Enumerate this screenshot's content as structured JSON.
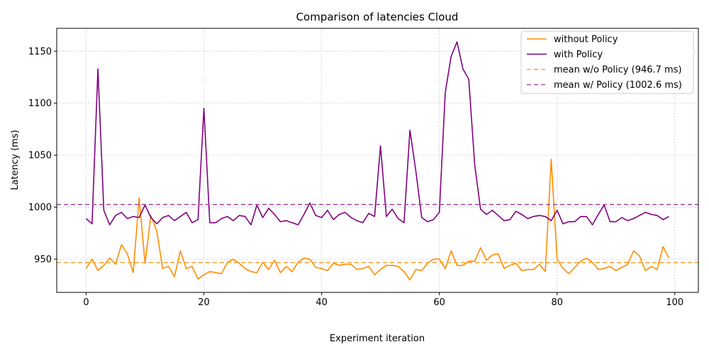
{
  "chart_data": {
    "type": "line",
    "title": "Comparison of latencies Cloud",
    "xlabel": "Experiment iteration",
    "ylabel": "Latency (ms)",
    "xlim": [
      -5,
      104
    ],
    "ylim": [
      918,
      1172
    ],
    "xticks": [
      0,
      20,
      40,
      60,
      80,
      100
    ],
    "yticks": [
      950,
      1000,
      1050,
      1100,
      1150
    ],
    "grid": true,
    "legend_position": "top-right",
    "series": [
      {
        "name": "without Policy",
        "color": "#ff8c00",
        "style": "solid",
        "values": [
          941,
          950,
          939,
          944,
          951,
          945,
          964,
          955,
          937,
          1009,
          946,
          992,
          977,
          941,
          943,
          933,
          958,
          941,
          943,
          931,
          935,
          938,
          937,
          936,
          947,
          950,
          946,
          941,
          938,
          937,
          947,
          940,
          949,
          937,
          943,
          938,
          947,
          951,
          950,
          942,
          941,
          939,
          946,
          944,
          945,
          945,
          940,
          941,
          943,
          935,
          940,
          944,
          944,
          943,
          938,
          930,
          940,
          939,
          946,
          950,
          950,
          941,
          958,
          944,
          944,
          948,
          948,
          961,
          949,
          954,
          955,
          941,
          944,
          946,
          939,
          940,
          940,
          945,
          938,
          1046,
          950,
          941,
          936,
          942,
          948,
          951,
          947,
          940,
          941,
          943,
          939,
          942,
          945,
          958,
          953,
          939,
          943,
          940,
          962,
          951
        ]
      },
      {
        "name": "with Policy",
        "color": "#800080",
        "style": "solid",
        "values": [
          989,
          984,
          1133,
          997,
          983,
          992,
          995,
          989,
          991,
          990,
          1002,
          990,
          984,
          990,
          992,
          987,
          991,
          995,
          985,
          988,
          1095,
          985,
          985,
          989,
          991,
          987,
          992,
          991,
          983,
          1002,
          990,
          999,
          993,
          986,
          987,
          985,
          983,
          993,
          1004,
          992,
          990,
          997,
          988,
          993,
          995,
          990,
          987,
          985,
          994,
          991,
          1059,
          991,
          998,
          989,
          985,
          1074,
          1035,
          990,
          986,
          988,
          995,
          1110,
          1145,
          1159,
          1133,
          1123,
          1041,
          998,
          993,
          997,
          992,
          987,
          988,
          996,
          993,
          989,
          991,
          992,
          991,
          987,
          997,
          984,
          986,
          986,
          991,
          991,
          983,
          993,
          1002,
          986,
          986,
          990,
          987,
          989,
          992,
          995,
          993,
          992,
          988,
          991
        ]
      },
      {
        "name": "mean w/o Policy (946.7 ms)",
        "color": "#f5a83c",
        "style": "dashed",
        "y": 946.7
      },
      {
        "name": "mean w/ Policy (1002.6 ms)",
        "color": "#a650a6",
        "style": "dashed",
        "y": 1002.6
      }
    ]
  }
}
